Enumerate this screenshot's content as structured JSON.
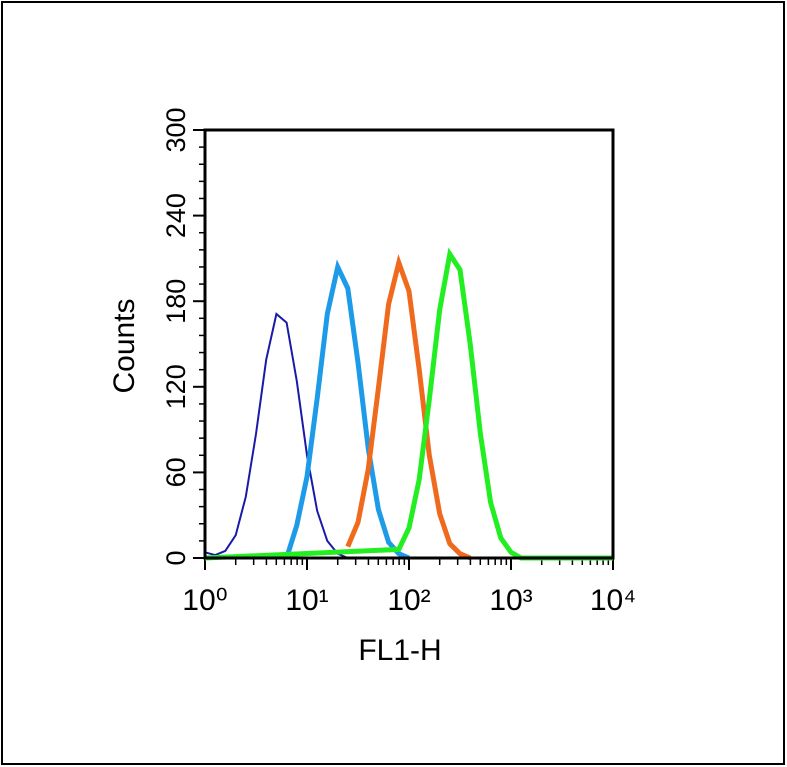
{
  "chart_data": {
    "type": "line",
    "xlabel": "FL1-H",
    "ylabel": "Counts",
    "xscale": "log",
    "xlim": [
      1,
      10000
    ],
    "ylim": [
      0,
      300
    ],
    "xticks": [
      {
        "value": 1,
        "label": "10⁰"
      },
      {
        "value": 10,
        "label": "10¹"
      },
      {
        "value": 100,
        "label": "10²"
      },
      {
        "value": 1000,
        "label": "10³"
      },
      {
        "value": 10000,
        "label": "10⁴"
      }
    ],
    "yticks": [
      0,
      60,
      120,
      180,
      240,
      300
    ],
    "series": [
      {
        "color": "#1a1aa8",
        "width": 2,
        "x": [
          1,
          1.26,
          1.58,
          2,
          2.51,
          3.16,
          3.98,
          5.01,
          6.31,
          7.94,
          10,
          12.6,
          15.8,
          20,
          25.1
        ],
        "values": [
          4,
          2,
          5,
          16,
          43,
          87,
          139,
          171,
          165,
          124,
          72,
          33,
          12,
          3,
          0
        ]
      },
      {
        "color": "#1e9be8",
        "width": 5,
        "x": [
          6.31,
          7.94,
          10,
          12.6,
          15.8,
          20,
          25.1,
          31.6,
          39.8,
          50.1,
          63.1,
          79.4,
          100
        ],
        "values": [
          0,
          23,
          57,
          112,
          171,
          204,
          189,
          137,
          77,
          34,
          11,
          3,
          0
        ]
      },
      {
        "color": "#f06a1e",
        "width": 5,
        "x": [
          25.1,
          31.6,
          39.8,
          50.1,
          63.1,
          79.4,
          100,
          126,
          158,
          200,
          251,
          316,
          398
        ],
        "values": [
          8,
          25,
          62,
          119,
          178,
          207,
          187,
          132,
          72,
          31,
          10,
          3,
          0
        ]
      },
      {
        "color": "#22ee22",
        "width": 5,
        "x": [
          1,
          79.4,
          100,
          126,
          158,
          200,
          251,
          316,
          398,
          501,
          631,
          794,
          1000,
          1259,
          10000
        ],
        "values": [
          0,
          6,
          21,
          55,
          111,
          174,
          213,
          202,
          150,
          87,
          39,
          14,
          4,
          0,
          0
        ]
      }
    ]
  }
}
